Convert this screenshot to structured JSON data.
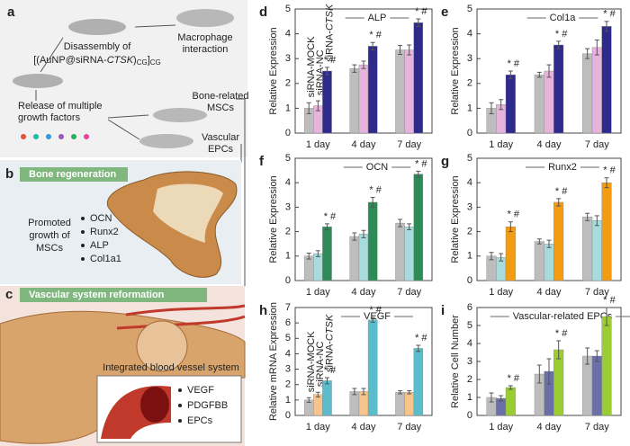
{
  "diagram": {
    "a": {
      "label": "a",
      "macrophage": [
        "Macrophage",
        "interaction"
      ],
      "disassembly": "Disassembly of",
      "formula": {
        "prefix": "[(AuNP@siRNA-",
        "gene": "CTSK",
        "mid": ")",
        "sub1": "CG",
        "close": "]",
        "sub2": "CG"
      },
      "release": [
        "Release of multiple",
        "growth factors"
      ],
      "bone": [
        "Bone-related",
        "MSCs"
      ],
      "vascular": [
        "Vascular",
        "EPCs"
      ]
    },
    "b": {
      "label": "b",
      "header": "Bone regeneration",
      "promoted": [
        "Promoted",
        "growth of",
        "MSCs"
      ],
      "items": [
        "OCN",
        "Runx2",
        "ALP",
        "Col1a1"
      ]
    },
    "c": {
      "label": "c",
      "header": "Vascular system reformation",
      "inset": "Integrated blood vessel system",
      "items": [
        "VEGF",
        "PDGFBB",
        "EPCs"
      ]
    }
  },
  "chart_data": [
    {
      "type": "bar",
      "label": "d",
      "title": "ALP",
      "ylabel": "Relative Expression",
      "categories": [
        "1 day",
        "4 day",
        "7 day"
      ],
      "ylim": [
        0,
        5
      ],
      "yticks": [
        0,
        1,
        2,
        3,
        4,
        5
      ],
      "series": [
        {
          "name": "siRNA-MOCK",
          "color": "#bdbdbd",
          "values": [
            1.0,
            2.6,
            3.35
          ],
          "errors": [
            0.22,
            0.15,
            0.18
          ]
        },
        {
          "name": "siRNA-NC",
          "color": "#e6b3dc",
          "values": [
            1.1,
            2.75,
            3.35
          ],
          "errors": [
            0.2,
            0.15,
            0.2
          ]
        },
        {
          "name": "siRNA-CTSK",
          "name_parts": [
            "siRNA-",
            "CTSK"
          ],
          "color": "#2e2a8c",
          "values": [
            2.5,
            3.5,
            4.45
          ],
          "errors": [
            0.15,
            0.15,
            0.15
          ]
        }
      ],
      "annotations": [
        "* #",
        "* #",
        "* #"
      ]
    },
    {
      "type": "bar",
      "label": "e",
      "title": "Col1a",
      "ylabel": "Relative Expression",
      "categories": [
        "1 day",
        "4 day",
        "7 day"
      ],
      "ylim": [
        0,
        5
      ],
      "yticks": [
        0,
        1,
        2,
        3,
        4,
        5
      ],
      "series": [
        {
          "color": "#bdbdbd",
          "values": [
            1.0,
            2.35,
            3.2
          ],
          "errors": [
            0.22,
            0.1,
            0.2
          ]
        },
        {
          "color": "#e6b3dc",
          "values": [
            1.15,
            2.5,
            3.45
          ],
          "errors": [
            0.2,
            0.25,
            0.3
          ]
        },
        {
          "color": "#2e2a8c",
          "values": [
            2.35,
            3.55,
            4.3
          ],
          "errors": [
            0.15,
            0.15,
            0.2
          ]
        }
      ],
      "annotations": [
        "* #",
        "* #",
        "* #"
      ]
    },
    {
      "type": "bar",
      "label": "f",
      "title": "OCN",
      "ylabel": "Relative Expression",
      "categories": [
        "1 day",
        "4 day",
        "7 day"
      ],
      "ylim": [
        0,
        5
      ],
      "yticks": [
        0,
        1,
        2,
        3,
        4,
        5
      ],
      "series": [
        {
          "color": "#bdbdbd",
          "values": [
            1.0,
            1.8,
            2.35
          ],
          "errors": [
            0.12,
            0.15,
            0.15
          ]
        },
        {
          "color": "#a8dcdc",
          "values": [
            1.1,
            1.9,
            2.2
          ],
          "errors": [
            0.12,
            0.15,
            0.12
          ]
        },
        {
          "color": "#2e8b57",
          "values": [
            2.2,
            3.2,
            4.35
          ],
          "errors": [
            0.12,
            0.2,
            0.12
          ]
        }
      ],
      "annotations": [
        "* #",
        "* #",
        "* #"
      ]
    },
    {
      "type": "bar",
      "label": "g",
      "title": "Runx2",
      "ylabel": "Relative Expression",
      "categories": [
        "1 day",
        "4 day",
        "7 day"
      ],
      "ylim": [
        0,
        5
      ],
      "yticks": [
        0,
        1,
        2,
        3,
        4,
        5
      ],
      "series": [
        {
          "color": "#bdbdbd",
          "values": [
            1.0,
            1.6,
            2.6
          ],
          "errors": [
            0.15,
            0.1,
            0.15
          ]
        },
        {
          "color": "#a8dcdc",
          "values": [
            0.95,
            1.5,
            2.45
          ],
          "errors": [
            0.15,
            0.15,
            0.2
          ]
        },
        {
          "color": "#f39c12",
          "values": [
            2.2,
            3.2,
            4.0
          ],
          "errors": [
            0.2,
            0.15,
            0.2
          ]
        }
      ],
      "annotations": [
        "* #",
        "* #",
        "* #"
      ]
    },
    {
      "type": "bar",
      "label": "h",
      "title": "VEGF",
      "ylabel": "Relative mRNA Expression",
      "categories": [
        "1 day",
        "4 day",
        "7 day"
      ],
      "ylim": [
        0,
        7
      ],
      "yticks": [
        0,
        1,
        2,
        3,
        4,
        5,
        6,
        7
      ],
      "series": [
        {
          "name": "siRNA-MOCK",
          "color": "#bdbdbd",
          "values": [
            1.0,
            1.55,
            1.5
          ],
          "errors": [
            0.15,
            0.2,
            0.1
          ]
        },
        {
          "name": "siRNA-NC",
          "color": "#f7c48c",
          "values": [
            1.35,
            1.55,
            1.5
          ],
          "errors": [
            0.15,
            0.2,
            0.1
          ]
        },
        {
          "name": "siRNA-CTSK",
          "name_parts": [
            "siRNA-",
            "CTSK"
          ],
          "color": "#5bbdcc",
          "values": [
            2.25,
            6.2,
            4.35
          ],
          "errors": [
            0.2,
            0.15,
            0.2
          ]
        }
      ],
      "annotations": [
        "* #",
        "* #",
        "* #"
      ]
    },
    {
      "type": "bar",
      "label": "i",
      "title": "Vascular-related EPCs",
      "ylabel": "Relative Cell Number",
      "categories": [
        "1 day",
        "4 day",
        "7 day"
      ],
      "ylim": [
        0,
        6
      ],
      "yticks": [
        0,
        1,
        2,
        3,
        4,
        5,
        6
      ],
      "series": [
        {
          "color": "#bdbdbd",
          "values": [
            1.0,
            2.3,
            3.3
          ],
          "errors": [
            0.25,
            0.5,
            0.45
          ]
        },
        {
          "color": "#6a6fa8",
          "values": [
            0.95,
            2.45,
            3.3
          ],
          "errors": [
            0.15,
            0.7,
            0.3
          ]
        },
        {
          "color": "#9acd32",
          "values": [
            1.55,
            3.65,
            5.5
          ],
          "errors": [
            0.1,
            0.5,
            0.5
          ]
        }
      ],
      "annotations": [
        "* #",
        "* #",
        "* #"
      ]
    }
  ]
}
